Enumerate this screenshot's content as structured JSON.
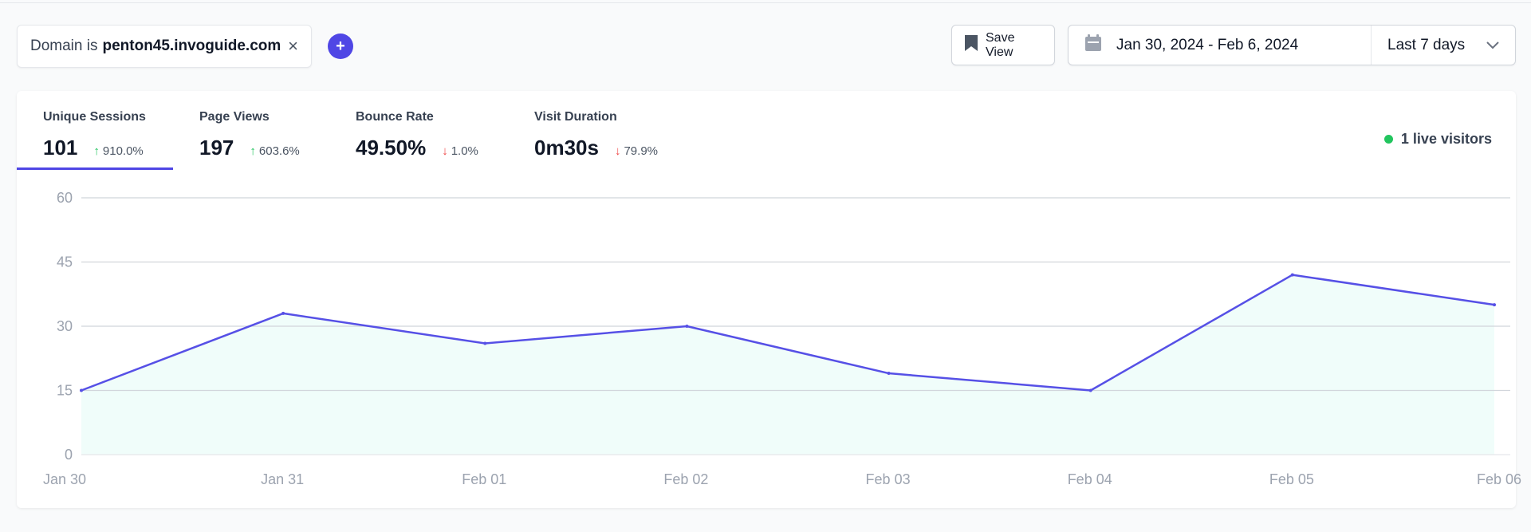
{
  "filter": {
    "prefix": "Domain is",
    "value": "penton45.invoguide.com",
    "remove_icon": "close-icon"
  },
  "add_filter": {
    "label": "+",
    "icon": "plus-icon"
  },
  "toolbar": {
    "save_view_label": "Save View",
    "save_icon": "bookmark-icon"
  },
  "date": {
    "range": "Jan 30, 2024 - Feb 6, 2024",
    "period": "Last 7 days",
    "calendar_icon": "calendar-icon",
    "chevron_icon": "chevron-down-icon"
  },
  "stats": [
    {
      "label": "Unique Sessions",
      "value": "101",
      "change": "910.0%",
      "direction": "up"
    },
    {
      "label": "Page Views",
      "value": "197",
      "change": "603.6%",
      "direction": "up"
    },
    {
      "label": "Bounce Rate",
      "value": "49.50%",
      "change": "1.0%",
      "direction": "down"
    },
    {
      "label": "Visit Duration",
      "value": "0m30s",
      "change": "79.9%",
      "direction": "down"
    }
  ],
  "live": {
    "label": "1 live visitors"
  },
  "colors": {
    "accent": "#4f46e5",
    "up": "#22c55e",
    "down": "#ef4444",
    "area_fill": "#f0fdfa",
    "line": "#5650e6"
  },
  "chart_data": {
    "type": "area",
    "categories": [
      "Jan 30",
      "Jan 31",
      "Feb 01",
      "Feb 02",
      "Feb 03",
      "Feb 04",
      "Feb 05",
      "Feb 06"
    ],
    "values": [
      15,
      33,
      26,
      30,
      19,
      15,
      42,
      35
    ],
    "yticks": [
      0,
      15,
      30,
      45,
      60
    ],
    "ylim": [
      0,
      60
    ],
    "grid": true
  }
}
